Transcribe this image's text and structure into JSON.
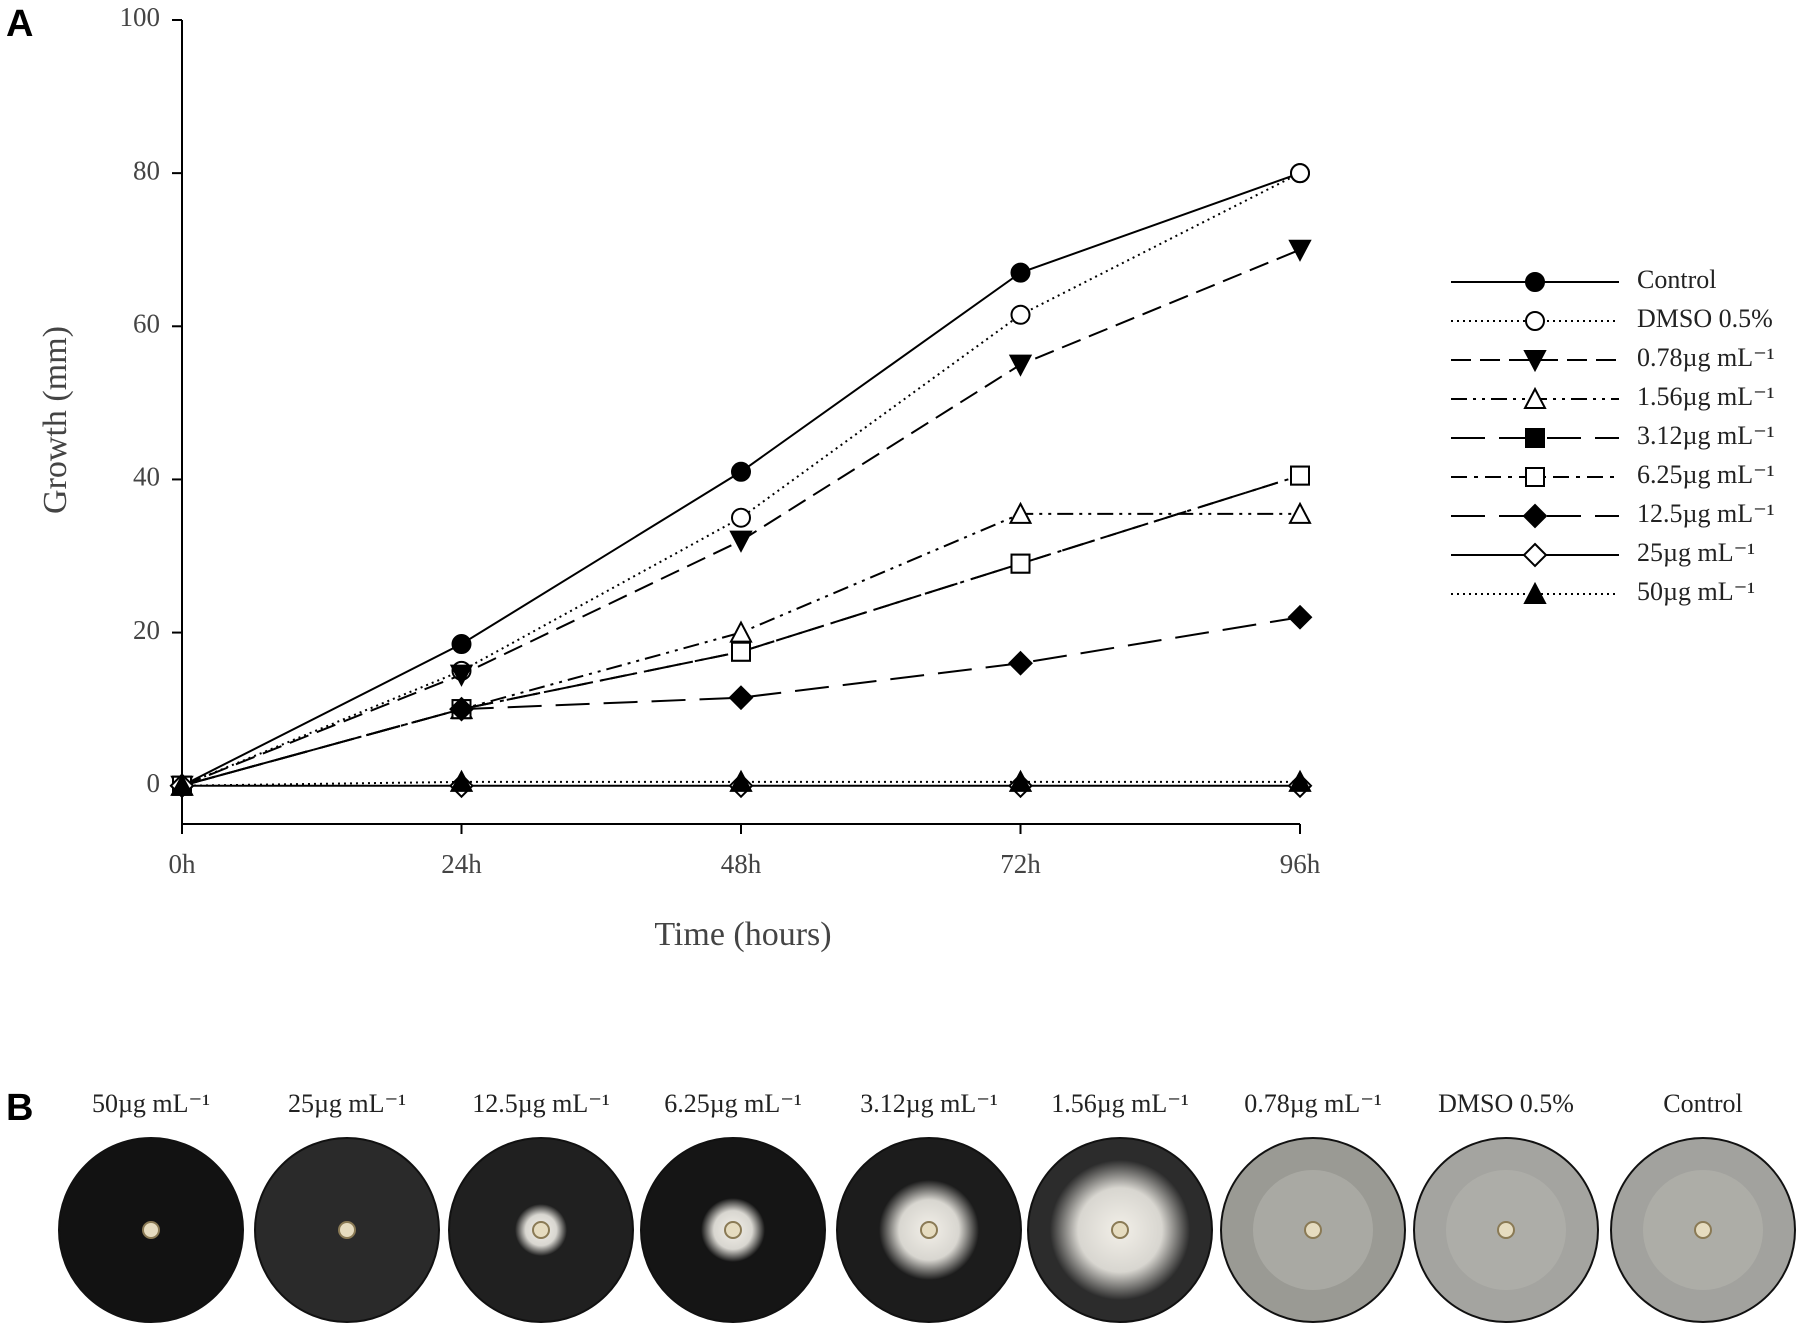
{
  "panel_labels": [
    "A",
    "B"
  ],
  "chart_data": {
    "type": "line",
    "x_label": "Time (hours)",
    "y_label": "Growth (mm)",
    "categories": [
      "0h",
      "24h",
      "48h",
      "72h",
      "96h"
    ],
    "ylim": [
      -5,
      100
    ],
    "yticks": [
      0,
      20,
      40,
      60,
      80,
      100
    ],
    "legend": "right",
    "series": [
      {
        "name": "Control",
        "color": "#000000",
        "marker": "circle",
        "filled": true,
        "dash": "solid",
        "values": [
          0,
          18.5,
          41,
          67,
          80
        ]
      },
      {
        "name": "DMSO 0.5%",
        "color": "#000000",
        "marker": "circle",
        "filled": false,
        "dash": "dotted",
        "values": [
          0,
          15,
          35,
          61.5,
          80
        ]
      },
      {
        "name": "0.78µg mL⁻¹",
        "color": "#000000",
        "marker": "triangle-down",
        "filled": true,
        "dash": "dashed",
        "values": [
          0,
          14.5,
          32,
          55,
          70
        ]
      },
      {
        "name": "1.56µg mL⁻¹",
        "color": "#000000",
        "marker": "triangle-up",
        "filled": false,
        "dash": "dash-dot-dot",
        "values": [
          0,
          10,
          20,
          35.5,
          35.5
        ]
      },
      {
        "name": "3.12µg mL⁻¹",
        "color": "#000000",
        "marker": "square",
        "filled": true,
        "dash": "long-dash",
        "values": [
          0,
          10,
          17.5,
          29,
          40.5
        ]
      },
      {
        "name": "6.25µg mL⁻¹",
        "color": "#000000",
        "marker": "square",
        "filled": false,
        "dash": "dash-dot",
        "values": [
          0,
          10,
          17.5,
          29,
          40.5
        ]
      },
      {
        "name": "12.5µg mL⁻¹",
        "color": "#000000",
        "marker": "diamond",
        "filled": true,
        "dash": "long-dash",
        "values": [
          0,
          10,
          11.5,
          16,
          22
        ]
      },
      {
        "name": "25µg mL⁻¹",
        "color": "#000000",
        "marker": "diamond",
        "filled": false,
        "dash": "solid",
        "values": [
          0,
          0,
          0,
          0,
          0
        ]
      },
      {
        "name": "50µg mL⁻¹",
        "color": "#000000",
        "marker": "triangle-up",
        "filled": true,
        "dash": "dotted",
        "values": [
          0,
          0.5,
          0.5,
          0.5,
          0.5
        ]
      }
    ]
  },
  "plates": {
    "labels": [
      "50µg mL⁻¹",
      "25µg mL⁻¹",
      "12.5µg mL⁻¹",
      "6.25µg mL⁻¹",
      "3.12µg mL⁻¹",
      "1.56µg mL⁻¹",
      "0.78µg mL⁻¹",
      "DMSO 0.5%",
      "Control"
    ]
  }
}
